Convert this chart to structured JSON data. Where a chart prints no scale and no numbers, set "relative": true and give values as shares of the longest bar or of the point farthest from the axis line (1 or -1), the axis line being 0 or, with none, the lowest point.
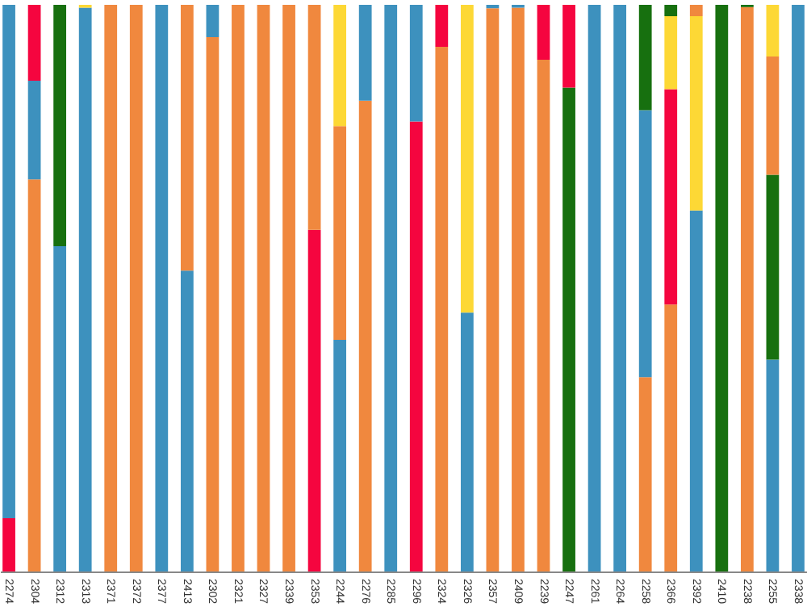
{
  "chart_data": {
    "type": "bar",
    "relative": true,
    "stacked": true,
    "categories": [
      "2274",
      "2304",
      "2312",
      "2313",
      "2371",
      "2372",
      "2377",
      "2413",
      "2302",
      "2321",
      "2327",
      "2339",
      "2353",
      "2244",
      "2276",
      "2285",
      "2296",
      "2324",
      "2326",
      "2357",
      "2409",
      "2239",
      "2247",
      "2261",
      "2264",
      "2258",
      "2366",
      "2392",
      "2410",
      "2238",
      "2255",
      "2338"
    ],
    "series": [
      {
        "values": [
          0.094,
          0.692,
          0.574,
          0.995,
          1,
          1,
          1,
          0.531,
          0.943,
          1,
          1,
          1,
          0.603,
          0.409,
          0.831,
          1,
          0.794,
          0.926,
          0.457,
          0.994,
          0.995,
          0.903,
          0.854,
          1,
          1,
          0.343,
          0.471,
          0.637,
          1,
          0.996,
          0.374,
          1
        ],
        "colors": [
          "#f5053f",
          "#f0883e",
          "#3d91be",
          "#3d91be",
          "#f0883e",
          "#f0883e",
          "#3d91be",
          "#3d91be",
          "#f0883e",
          "#f0883e",
          "#f0883e",
          "#f0883e",
          "#f5053f",
          "#3d91be",
          "#f0883e",
          "#3d91be",
          "#f5053f",
          "#f0883e",
          "#3d91be",
          "#f0883e",
          "#f0883e",
          "#f0883e",
          "#17700f",
          "#3d91be",
          "#3d91be",
          "#f0883e",
          "#f0883e",
          "#3d91be",
          "#17700f",
          "#f0883e",
          "#3d91be",
          "#3d91be"
        ]
      },
      {
        "values": [
          0.906,
          0.174,
          0.426,
          0.005,
          null,
          null,
          null,
          0.469,
          0.057,
          null,
          null,
          null,
          0.397,
          0.377,
          0.169,
          null,
          0.206,
          0.074,
          0.543,
          0.006,
          0.005,
          0.097,
          0.146,
          null,
          null,
          0.471,
          0.38,
          0.343,
          null,
          0.004,
          0.326,
          null
        ],
        "colors": [
          "#3d91be",
          "#3d91be",
          "#17700f",
          "#fdd835",
          null,
          null,
          null,
          "#f0883e",
          "#3d91be",
          null,
          null,
          null,
          "#f0883e",
          "#f0883e",
          "#3d91be",
          null,
          "#3d91be",
          "#f5053f",
          "#fdd835",
          "#3d91be",
          "#3d91be",
          "#f5053f",
          "#f5053f",
          null,
          null,
          "#3d91be",
          "#f5053f",
          "#fdd835",
          null,
          "#17700f",
          "#17700f",
          null
        ]
      },
      {
        "values": [
          null,
          0.134,
          null,
          null,
          null,
          null,
          null,
          null,
          null,
          null,
          null,
          null,
          null,
          0.214,
          null,
          null,
          null,
          null,
          null,
          null,
          null,
          null,
          null,
          null,
          null,
          0.186,
          0.129,
          0.02,
          null,
          null,
          0.209,
          null
        ],
        "colors": [
          null,
          "#f5053f",
          null,
          null,
          null,
          null,
          null,
          null,
          null,
          null,
          null,
          null,
          null,
          "#fdd835",
          null,
          null,
          null,
          null,
          null,
          null,
          null,
          null,
          null,
          null,
          null,
          "#17700f",
          "#fdd835",
          "#f0883e",
          null,
          null,
          "#f0883e",
          null
        ]
      },
      {
        "values": [
          null,
          null,
          null,
          null,
          null,
          null,
          null,
          null,
          null,
          null,
          null,
          null,
          null,
          null,
          null,
          null,
          null,
          null,
          null,
          null,
          null,
          null,
          null,
          null,
          null,
          null,
          0.02,
          null,
          null,
          null,
          0.091,
          null
        ],
        "colors": [
          null,
          null,
          null,
          null,
          null,
          null,
          null,
          null,
          null,
          null,
          null,
          null,
          null,
          null,
          null,
          null,
          null,
          null,
          null,
          null,
          null,
          null,
          null,
          null,
          null,
          null,
          "#17700f",
          null,
          null,
          null,
          "#fdd835",
          null
        ]
      }
    ]
  }
}
